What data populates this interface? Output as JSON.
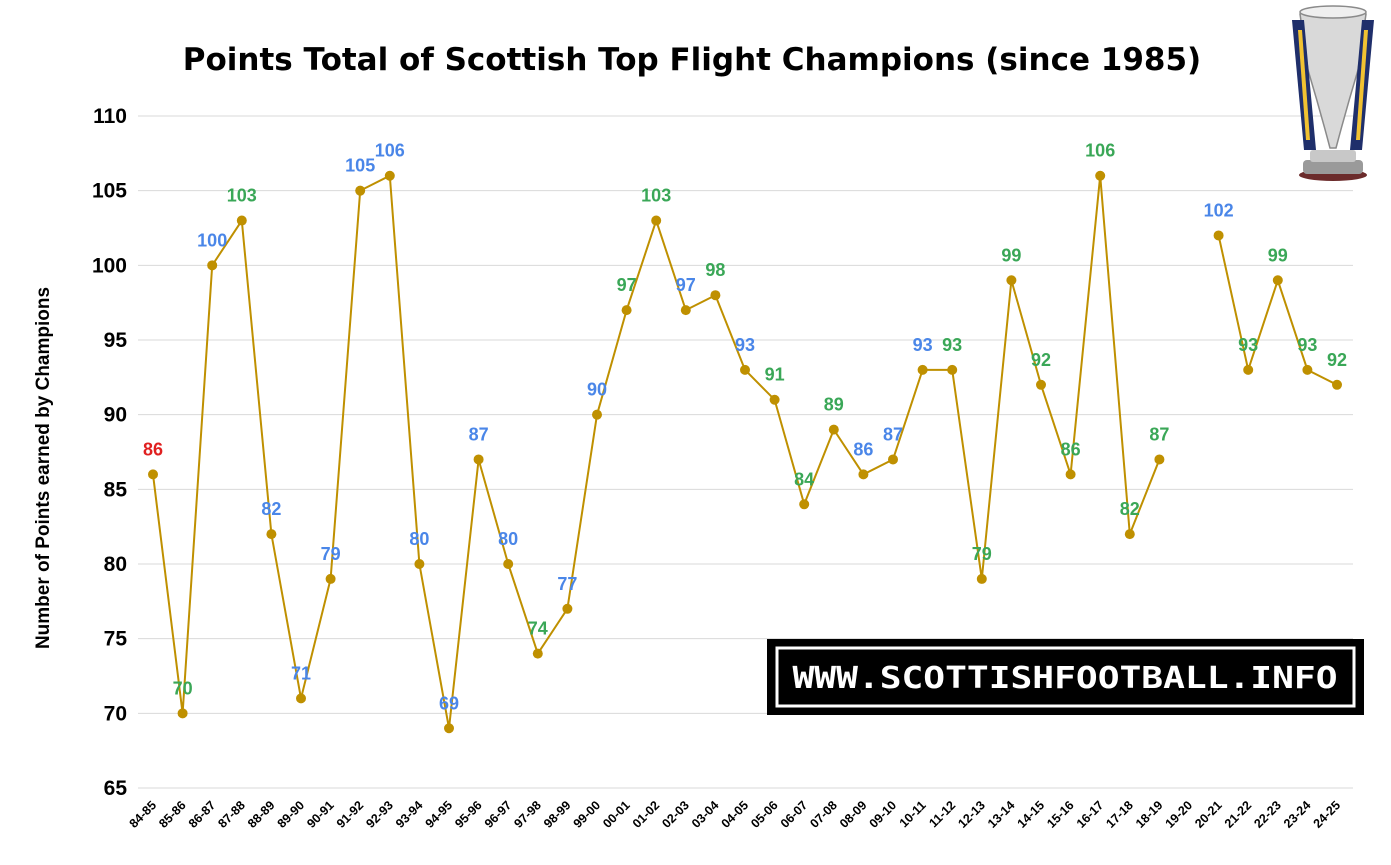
{
  "chart_data": {
    "type": "line",
    "title": "Points Total of Scottish Top Flight Champions (since 1985)",
    "xlabel": "",
    "ylabel": "Number of Points earned by Champions",
    "ylim": [
      65,
      110
    ],
    "yticks": [
      65,
      70,
      75,
      80,
      85,
      90,
      95,
      100,
      105,
      110
    ],
    "grid": true,
    "legend": "none",
    "categories": [
      "84-85",
      "85-86",
      "86-87",
      "87-88",
      "88-89",
      "89-90",
      "90-91",
      "91-92",
      "92-93",
      "93-94",
      "94-95",
      "95-96",
      "96-97",
      "97-98",
      "98-99",
      "99-00",
      "00-01",
      "01-02",
      "02-03",
      "03-04",
      "04-05",
      "05-06",
      "06-07",
      "07-08",
      "08-09",
      "09-10",
      "10-11",
      "11-12",
      "12-13",
      "13-14",
      "14-15",
      "15-16",
      "16-17",
      "17-18",
      "18-19",
      "19-20",
      "20-21",
      "21-22",
      "22-23",
      "23-24",
      "24-25"
    ],
    "values": [
      86,
      70,
      100,
      103,
      82,
      71,
      79,
      105,
      106,
      80,
      69,
      87,
      80,
      74,
      77,
      90,
      97,
      103,
      97,
      98,
      93,
      91,
      84,
      89,
      86,
      87,
      93,
      93,
      79,
      99,
      92,
      86,
      106,
      82,
      87,
      null,
      102,
      93,
      99,
      93,
      92
    ],
    "label_colors": [
      "#e02020",
      "#3aa757",
      "#4a86e8",
      "#3aa757",
      "#4a86e8",
      "#4a86e8",
      "#4a86e8",
      "#4a86e8",
      "#4a86e8",
      "#4a86e8",
      "#4a86e8",
      "#4a86e8",
      "#4a86e8",
      "#3aa757",
      "#4a86e8",
      "#4a86e8",
      "#3aa757",
      "#3aa757",
      "#4a86e8",
      "#3aa757",
      "#4a86e8",
      "#3aa757",
      "#3aa757",
      "#3aa757",
      "#4a86e8",
      "#4a86e8",
      "#4a86e8",
      "#3aa757",
      "#3aa757",
      "#3aa757",
      "#3aa757",
      "#3aa757",
      "#3aa757",
      "#3aa757",
      "#3aa757",
      null,
      "#4a86e8",
      "#3aa757",
      "#3aa757",
      "#3aa757",
      "#3aa757"
    ],
    "line_color": "#bf9000"
  },
  "watermark": {
    "text": "WWW.SCOTTISHFOOTBALL.INFO"
  },
  "trophy_icon": "trophy-icon"
}
